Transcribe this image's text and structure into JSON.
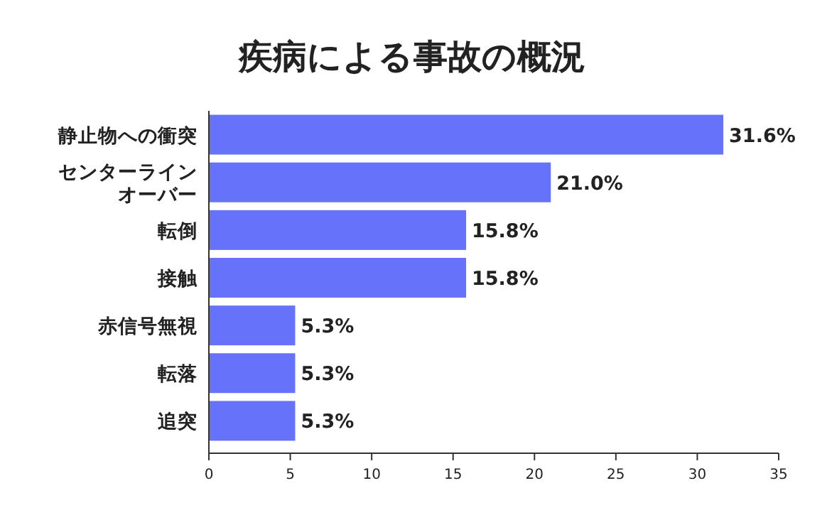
{
  "chart_data": {
    "type": "bar",
    "orientation": "horizontal",
    "title": "疾病による事故の概況",
    "categories": [
      "静止物への衝突",
      "センターラインオーバー",
      "転倒",
      "接触",
      "赤信号無視",
      "転落",
      "追突"
    ],
    "values": [
      31.6,
      21.0,
      15.8,
      15.8,
      5.3,
      5.3,
      5.3
    ],
    "value_labels": [
      "31.6%",
      "21.0%",
      "15.8%",
      "15.8%",
      "5.3%",
      "5.3%",
      "5.3%"
    ],
    "color": "#6672fa",
    "xlim": [
      0,
      35
    ],
    "xticks": [
      0,
      5,
      10,
      15,
      20,
      25,
      30,
      35
    ],
    "grid": false
  }
}
